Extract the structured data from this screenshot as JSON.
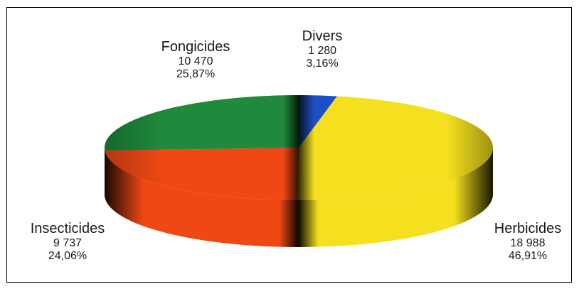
{
  "colors": {
    "frame": "#000000",
    "divers": "#1f4fc4",
    "herbicides": "#f4e01e",
    "insecticides": "#f04814",
    "fongicides": "#1f8a3c"
  },
  "chart_data": {
    "type": "pie",
    "style": "3d-tilted",
    "slices": [
      {
        "label": "Divers",
        "value_text": "1 280",
        "value": 1280,
        "percent_text": "3,16%",
        "percent": 3.16,
        "color": "#1f4fc4"
      },
      {
        "label": "Herbicides",
        "value_text": "18 988",
        "value": 18988,
        "percent_text": "46,91%",
        "percent": 46.91,
        "color": "#f4e01e"
      },
      {
        "label": "Insecticides",
        "value_text": "9 737",
        "value": 9737,
        "percent_text": "24,06%",
        "percent": 24.06,
        "color": "#f04814"
      },
      {
        "label": "Fongicides",
        "value_text": "10 470",
        "value": 10470,
        "percent_text": "25,87%",
        "percent": 25.87,
        "color": "#1f8a3c"
      }
    ],
    "start_angle_deg": 0,
    "direction": "clockwise",
    "legend": "none",
    "data_labels": "outside"
  }
}
